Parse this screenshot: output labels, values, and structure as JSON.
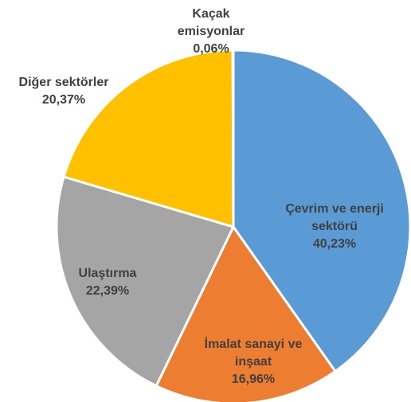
{
  "chart_data": {
    "type": "pie",
    "categories": [
      "Çevrim ve enerji sektörü",
      "İmalat sanayi ve inşaat",
      "Ulaştırma",
      "Diğer sektörler",
      "Kaçak emisyonlar"
    ],
    "values": [
      40.23,
      16.96,
      22.39,
      20.37,
      0.06
    ],
    "value_labels": [
      "40,23%",
      "16,96%",
      "22,39%",
      "20,37%",
      "0,06%"
    ],
    "colors": [
      "#5b9bd5",
      "#ed7d31",
      "#a5a5a5",
      "#ffc000",
      "#4472c4"
    ]
  }
}
